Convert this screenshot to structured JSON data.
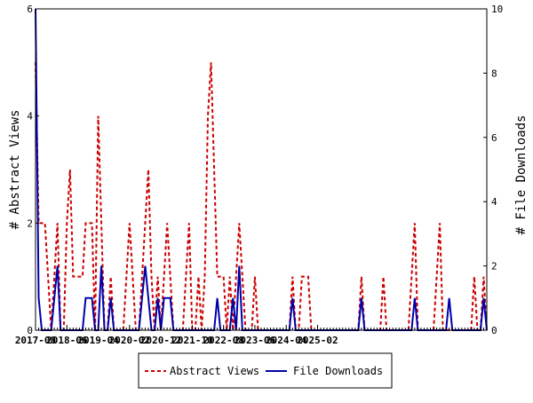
{
  "chart_data": {
    "type": "line",
    "title": "",
    "ylabel_left": "# Abstract Views",
    "ylabel_right": "# File Downloads",
    "ylim_left": [
      0,
      6
    ],
    "ylim_right": [
      0,
      10
    ],
    "yticks_left": [
      "0",
      "2",
      "4",
      "6"
    ],
    "yticks_right": [
      "0",
      "2",
      "4",
      "6",
      "8",
      "10"
    ],
    "xtick_labels": [
      "2017-08",
      "2018-06",
      "2019-04",
      "2020-02",
      "2020-12",
      "2021-10",
      "2022-08",
      "2023-06",
      "2024-04",
      "2025-02"
    ],
    "grid": false,
    "legend_position": "bottom",
    "series": [
      {
        "name": "Abstract Views",
        "axis": "left",
        "color": "#cc0000",
        "style": "dashed",
        "values": [
          5,
          2,
          2,
          2,
          1,
          0,
          1,
          2,
          0,
          0,
          2,
          3,
          1,
          1,
          1,
          1,
          2,
          2,
          2,
          0,
          4,
          2,
          0,
          0,
          1,
          0,
          0,
          0,
          0,
          1,
          2,
          1,
          0,
          0,
          1,
          2,
          3,
          1,
          0,
          1,
          0,
          1,
          2,
          1,
          0,
          0,
          0,
          0,
          1,
          2,
          0,
          0,
          1,
          0,
          1,
          4,
          5,
          3,
          1,
          1,
          1,
          0,
          1,
          0,
          1,
          2,
          1,
          0,
          0,
          0,
          1,
          0,
          0,
          0,
          0,
          0,
          0,
          0,
          0,
          0,
          0,
          0,
          1,
          0,
          0,
          1,
          1,
          1,
          0,
          0,
          0,
          0,
          0,
          0,
          0,
          0,
          0,
          0,
          0,
          0,
          0,
          0,
          0,
          0,
          1,
          0,
          0,
          0,
          0,
          0,
          0,
          1,
          0,
          0,
          0,
          0,
          0,
          0,
          0,
          0,
          1,
          2,
          0,
          0,
          0,
          0,
          0,
          0,
          1,
          2,
          0,
          0,
          0,
          0,
          0,
          0,
          0,
          0,
          0,
          0,
          1,
          0,
          0,
          1,
          0
        ]
      },
      {
        "name": "File Downloads",
        "axis": "right",
        "color": "#0000aa",
        "style": "solid",
        "values": [
          10,
          1,
          0,
          0,
          0,
          0,
          1,
          2,
          0,
          0,
          0,
          0,
          0,
          0,
          0,
          0,
          1,
          1,
          1,
          0,
          0,
          2,
          0,
          0,
          1,
          0,
          0,
          0,
          0,
          0,
          0,
          0,
          0,
          0,
          1,
          2,
          1,
          0,
          0,
          1,
          0,
          1,
          1,
          1,
          0,
          0,
          0,
          0,
          0,
          0,
          0,
          0,
          0,
          0,
          0,
          0,
          0,
          0,
          1,
          0,
          0,
          0,
          0,
          1,
          0,
          2,
          0,
          0,
          0,
          0,
          0,
          0,
          0,
          0,
          0,
          0,
          0,
          0,
          0,
          0,
          0,
          0,
          1,
          0,
          0,
          0,
          0,
          0,
          0,
          0,
          0,
          0,
          0,
          0,
          0,
          0,
          0,
          0,
          0,
          0,
          0,
          0,
          0,
          0,
          1,
          0,
          0,
          0,
          0,
          0,
          0,
          0,
          0,
          0,
          0,
          0,
          0,
          0,
          0,
          0,
          0,
          1,
          0,
          0,
          0,
          0,
          0,
          0,
          0,
          0,
          0,
          0,
          1,
          0,
          0,
          0,
          0,
          0,
          0,
          0,
          0,
          0,
          0,
          1,
          0
        ]
      }
    ]
  }
}
